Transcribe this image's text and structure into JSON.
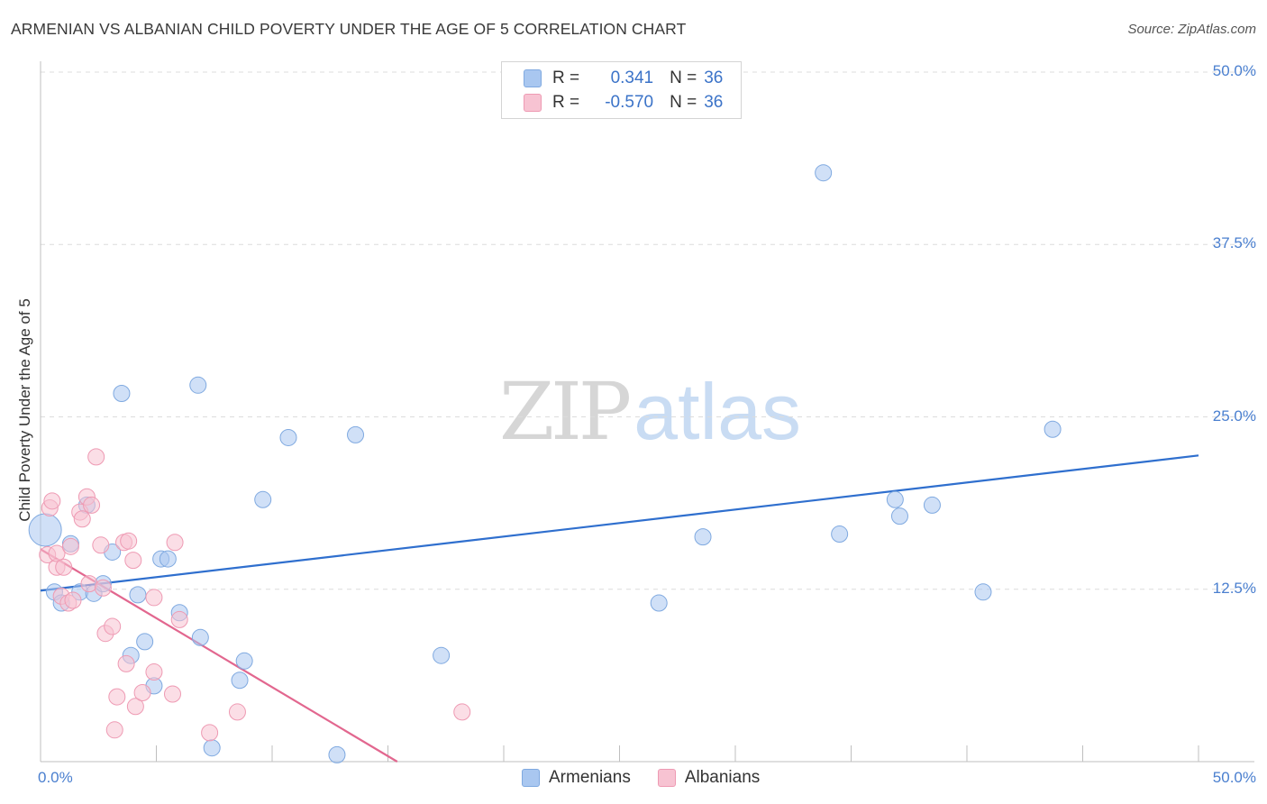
{
  "title": "ARMENIAN VS ALBANIAN CHILD POVERTY UNDER THE AGE OF 5 CORRELATION CHART",
  "source": "Source: ZipAtlas.com",
  "watermark": {
    "zip": "ZIP",
    "atlas": "atlas"
  },
  "legend": {
    "r_label": "R =",
    "n_label": "N =",
    "rows": [
      {
        "r": "0.341",
        "n": "36",
        "color": "#a9c7f0",
        "border": "#7fa9e0"
      },
      {
        "r": "-0.570",
        "n": "36",
        "color": "#f7c3d2",
        "border": "#ee9ab3"
      }
    ]
  },
  "bottom_legend": [
    {
      "label": "Armenians",
      "color": "#a9c7f0",
      "border": "#7fa9e0"
    },
    {
      "label": "Albanians",
      "color": "#f7c3d2",
      "border": "#ee9ab3"
    }
  ],
  "chart_data": {
    "type": "scatter",
    "title": "ARMENIAN VS ALBANIAN CHILD POVERTY UNDER THE AGE OF 5 CORRELATION CHART",
    "xlabel": "",
    "ylabel": "Child Poverty Under the Age of 5",
    "xlim": [
      0,
      50
    ],
    "ylim": [
      0,
      50
    ],
    "x_tick_labels": [
      "0.0%",
      "50.0%"
    ],
    "y_ticks": [
      12.5,
      25.0,
      37.5,
      50.0
    ],
    "y_tick_labels": [
      "12.5%",
      "25.0%",
      "37.5%",
      "50.0%"
    ],
    "grid": true,
    "series": [
      {
        "name": "Armenians",
        "color": "#a9c7f0",
        "stroke": "#7fa9e0",
        "line_color": "#2f6fce",
        "trend": [
          [
            0.0,
            12.4
          ],
          [
            50.0,
            22.2
          ]
        ],
        "points": [
          [
            0.2,
            16.8
          ],
          [
            0.6,
            12.3
          ],
          [
            0.9,
            11.5
          ],
          [
            1.3,
            15.8
          ],
          [
            1.7,
            12.3
          ],
          [
            2.0,
            18.6
          ],
          [
            2.3,
            12.2
          ],
          [
            2.7,
            12.9
          ],
          [
            3.1,
            15.2
          ],
          [
            3.5,
            26.7
          ],
          [
            3.9,
            7.7
          ],
          [
            4.2,
            12.1
          ],
          [
            4.5,
            8.7
          ],
          [
            4.9,
            5.5
          ],
          [
            5.2,
            14.7
          ],
          [
            5.5,
            14.7
          ],
          [
            6.0,
            10.8
          ],
          [
            6.8,
            27.3
          ],
          [
            6.9,
            9.0
          ],
          [
            7.4,
            1.0
          ],
          [
            8.6,
            5.9
          ],
          [
            8.8,
            7.3
          ],
          [
            9.6,
            19.0
          ],
          [
            10.7,
            23.5
          ],
          [
            12.8,
            0.5
          ],
          [
            13.6,
            23.7
          ],
          [
            17.3,
            7.7
          ],
          [
            26.7,
            11.5
          ],
          [
            28.6,
            16.3
          ],
          [
            33.8,
            42.7
          ],
          [
            34.5,
            16.5
          ],
          [
            36.9,
            19.0
          ],
          [
            37.1,
            17.8
          ],
          [
            38.5,
            18.6
          ],
          [
            40.7,
            12.3
          ],
          [
            43.7,
            24.1
          ]
        ]
      },
      {
        "name": "Albanians",
        "color": "#f7c3d2",
        "stroke": "#ee9ab3",
        "line_color": "#e2678f",
        "trend": [
          [
            0.0,
            15.4
          ],
          [
            15.4,
            0.0
          ]
        ],
        "points": [
          [
            0.3,
            15.0
          ],
          [
            0.4,
            18.4
          ],
          [
            0.5,
            18.9
          ],
          [
            0.7,
            14.1
          ],
          [
            0.7,
            15.1
          ],
          [
            0.9,
            12.0
          ],
          [
            1.0,
            14.1
          ],
          [
            1.2,
            11.5
          ],
          [
            1.3,
            15.6
          ],
          [
            1.4,
            11.7
          ],
          [
            1.7,
            18.1
          ],
          [
            1.8,
            17.6
          ],
          [
            2.0,
            19.2
          ],
          [
            2.1,
            12.9
          ],
          [
            2.2,
            18.6
          ],
          [
            2.4,
            22.1
          ],
          [
            2.6,
            15.7
          ],
          [
            2.7,
            12.6
          ],
          [
            2.8,
            9.3
          ],
          [
            3.1,
            9.8
          ],
          [
            3.2,
            2.3
          ],
          [
            3.3,
            4.7
          ],
          [
            3.6,
            15.9
          ],
          [
            3.7,
            7.1
          ],
          [
            3.8,
            16.0
          ],
          [
            4.0,
            14.6
          ],
          [
            4.1,
            4.0
          ],
          [
            4.4,
            5.0
          ],
          [
            4.9,
            11.9
          ],
          [
            4.9,
            6.5
          ],
          [
            5.7,
            4.9
          ],
          [
            5.8,
            15.9
          ],
          [
            6.0,
            10.3
          ],
          [
            7.3,
            2.1
          ],
          [
            8.5,
            3.6
          ],
          [
            18.2,
            3.6
          ]
        ]
      }
    ]
  }
}
